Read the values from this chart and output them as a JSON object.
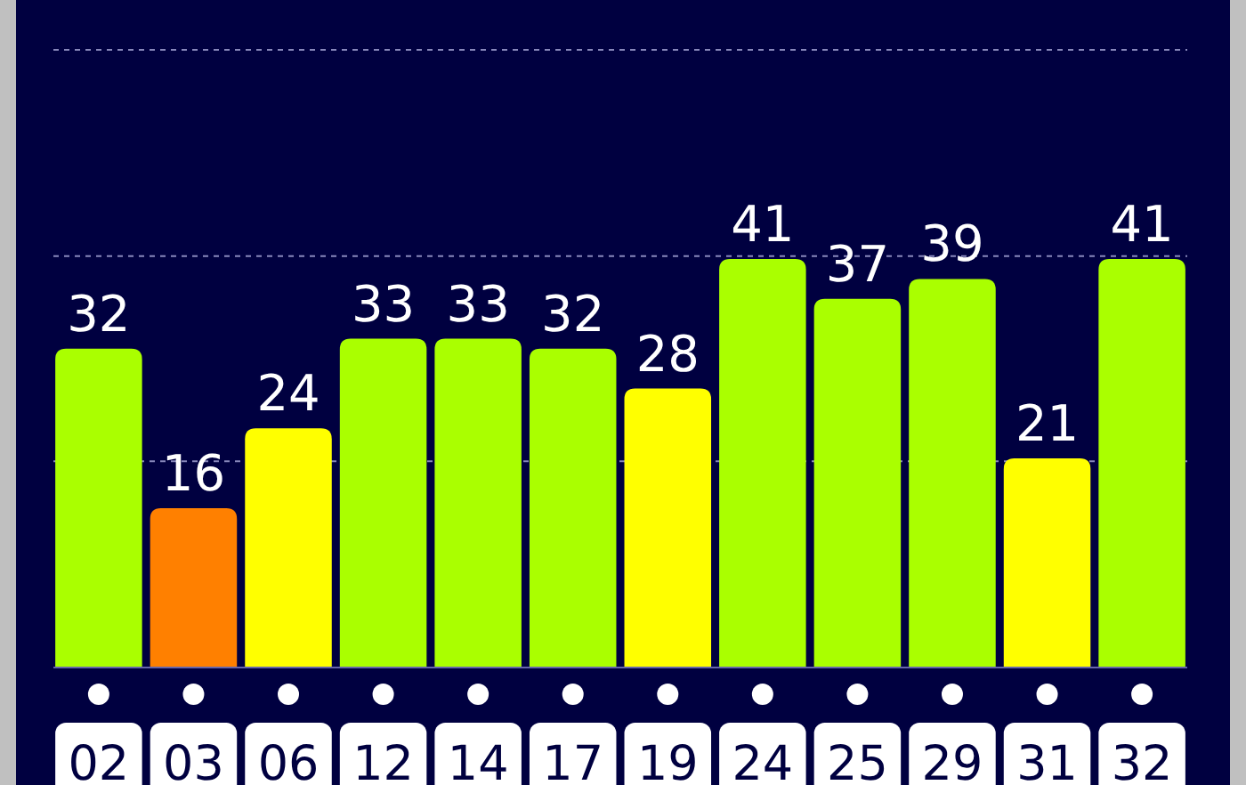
{
  "chart_data": {
    "type": "bar",
    "categories": [
      "02",
      "03",
      "06",
      "12",
      "14",
      "17",
      "19",
      "24",
      "25",
      "29",
      "31",
      "32"
    ],
    "values": [
      32,
      16,
      24,
      33,
      33,
      32,
      28,
      41,
      37,
      39,
      21,
      41
    ],
    "colors": [
      "#aaff00",
      "#ff8000",
      "#ffff00",
      "#aaff00",
      "#aaff00",
      "#aaff00",
      "#ffff00",
      "#aaff00",
      "#aaff00",
      "#aaff00",
      "#ffff00",
      "#aaff00"
    ],
    "ylim": [
      0,
      67
    ],
    "yticks": [
      {
        "value": 20.7,
        "label": null
      },
      {
        "value": 41.3,
        "label": null
      },
      {
        "value": 62,
        "label": null
      }
    ],
    "grid": "y",
    "data_labels": true,
    "tick_labels": "x"
  }
}
